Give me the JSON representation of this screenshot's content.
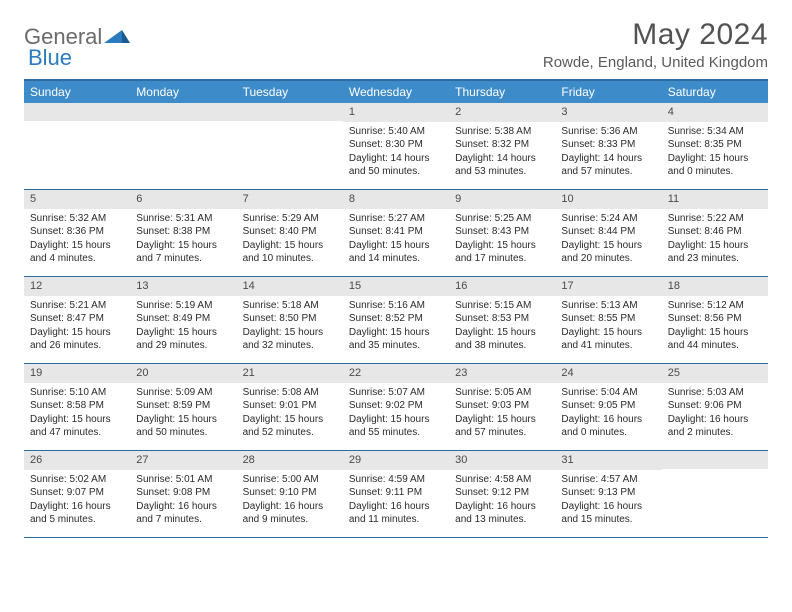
{
  "logo": {
    "text1": "General",
    "text2": "Blue"
  },
  "header": {
    "month_title": "May 2024",
    "location": "Rowde, England, United Kingdom"
  },
  "colors": {
    "header_bar": "#3d8bc9",
    "border": "#2b6ca3",
    "daynum_bg": "#e7e7e7",
    "logo_gray": "#6b6b6b",
    "logo_blue": "#2b7bbf"
  },
  "weekdays": [
    "Sunday",
    "Monday",
    "Tuesday",
    "Wednesday",
    "Thursday",
    "Friday",
    "Saturday"
  ],
  "weeks": [
    [
      {
        "day": "",
        "sunrise": "",
        "sunset": "",
        "daylight": ""
      },
      {
        "day": "",
        "sunrise": "",
        "sunset": "",
        "daylight": ""
      },
      {
        "day": "",
        "sunrise": "",
        "sunset": "",
        "daylight": ""
      },
      {
        "day": "1",
        "sunrise": "Sunrise: 5:40 AM",
        "sunset": "Sunset: 8:30 PM",
        "daylight": "Daylight: 14 hours and 50 minutes."
      },
      {
        "day": "2",
        "sunrise": "Sunrise: 5:38 AM",
        "sunset": "Sunset: 8:32 PM",
        "daylight": "Daylight: 14 hours and 53 minutes."
      },
      {
        "day": "3",
        "sunrise": "Sunrise: 5:36 AM",
        "sunset": "Sunset: 8:33 PM",
        "daylight": "Daylight: 14 hours and 57 minutes."
      },
      {
        "day": "4",
        "sunrise": "Sunrise: 5:34 AM",
        "sunset": "Sunset: 8:35 PM",
        "daylight": "Daylight: 15 hours and 0 minutes."
      }
    ],
    [
      {
        "day": "5",
        "sunrise": "Sunrise: 5:32 AM",
        "sunset": "Sunset: 8:36 PM",
        "daylight": "Daylight: 15 hours and 4 minutes."
      },
      {
        "day": "6",
        "sunrise": "Sunrise: 5:31 AM",
        "sunset": "Sunset: 8:38 PM",
        "daylight": "Daylight: 15 hours and 7 minutes."
      },
      {
        "day": "7",
        "sunrise": "Sunrise: 5:29 AM",
        "sunset": "Sunset: 8:40 PM",
        "daylight": "Daylight: 15 hours and 10 minutes."
      },
      {
        "day": "8",
        "sunrise": "Sunrise: 5:27 AM",
        "sunset": "Sunset: 8:41 PM",
        "daylight": "Daylight: 15 hours and 14 minutes."
      },
      {
        "day": "9",
        "sunrise": "Sunrise: 5:25 AM",
        "sunset": "Sunset: 8:43 PM",
        "daylight": "Daylight: 15 hours and 17 minutes."
      },
      {
        "day": "10",
        "sunrise": "Sunrise: 5:24 AM",
        "sunset": "Sunset: 8:44 PM",
        "daylight": "Daylight: 15 hours and 20 minutes."
      },
      {
        "day": "11",
        "sunrise": "Sunrise: 5:22 AM",
        "sunset": "Sunset: 8:46 PM",
        "daylight": "Daylight: 15 hours and 23 minutes."
      }
    ],
    [
      {
        "day": "12",
        "sunrise": "Sunrise: 5:21 AM",
        "sunset": "Sunset: 8:47 PM",
        "daylight": "Daylight: 15 hours and 26 minutes."
      },
      {
        "day": "13",
        "sunrise": "Sunrise: 5:19 AM",
        "sunset": "Sunset: 8:49 PM",
        "daylight": "Daylight: 15 hours and 29 minutes."
      },
      {
        "day": "14",
        "sunrise": "Sunrise: 5:18 AM",
        "sunset": "Sunset: 8:50 PM",
        "daylight": "Daylight: 15 hours and 32 minutes."
      },
      {
        "day": "15",
        "sunrise": "Sunrise: 5:16 AM",
        "sunset": "Sunset: 8:52 PM",
        "daylight": "Daylight: 15 hours and 35 minutes."
      },
      {
        "day": "16",
        "sunrise": "Sunrise: 5:15 AM",
        "sunset": "Sunset: 8:53 PM",
        "daylight": "Daylight: 15 hours and 38 minutes."
      },
      {
        "day": "17",
        "sunrise": "Sunrise: 5:13 AM",
        "sunset": "Sunset: 8:55 PM",
        "daylight": "Daylight: 15 hours and 41 minutes."
      },
      {
        "day": "18",
        "sunrise": "Sunrise: 5:12 AM",
        "sunset": "Sunset: 8:56 PM",
        "daylight": "Daylight: 15 hours and 44 minutes."
      }
    ],
    [
      {
        "day": "19",
        "sunrise": "Sunrise: 5:10 AM",
        "sunset": "Sunset: 8:58 PM",
        "daylight": "Daylight: 15 hours and 47 minutes."
      },
      {
        "day": "20",
        "sunrise": "Sunrise: 5:09 AM",
        "sunset": "Sunset: 8:59 PM",
        "daylight": "Daylight: 15 hours and 50 minutes."
      },
      {
        "day": "21",
        "sunrise": "Sunrise: 5:08 AM",
        "sunset": "Sunset: 9:01 PM",
        "daylight": "Daylight: 15 hours and 52 minutes."
      },
      {
        "day": "22",
        "sunrise": "Sunrise: 5:07 AM",
        "sunset": "Sunset: 9:02 PM",
        "daylight": "Daylight: 15 hours and 55 minutes."
      },
      {
        "day": "23",
        "sunrise": "Sunrise: 5:05 AM",
        "sunset": "Sunset: 9:03 PM",
        "daylight": "Daylight: 15 hours and 57 minutes."
      },
      {
        "day": "24",
        "sunrise": "Sunrise: 5:04 AM",
        "sunset": "Sunset: 9:05 PM",
        "daylight": "Daylight: 16 hours and 0 minutes."
      },
      {
        "day": "25",
        "sunrise": "Sunrise: 5:03 AM",
        "sunset": "Sunset: 9:06 PM",
        "daylight": "Daylight: 16 hours and 2 minutes."
      }
    ],
    [
      {
        "day": "26",
        "sunrise": "Sunrise: 5:02 AM",
        "sunset": "Sunset: 9:07 PM",
        "daylight": "Daylight: 16 hours and 5 minutes."
      },
      {
        "day": "27",
        "sunrise": "Sunrise: 5:01 AM",
        "sunset": "Sunset: 9:08 PM",
        "daylight": "Daylight: 16 hours and 7 minutes."
      },
      {
        "day": "28",
        "sunrise": "Sunrise: 5:00 AM",
        "sunset": "Sunset: 9:10 PM",
        "daylight": "Daylight: 16 hours and 9 minutes."
      },
      {
        "day": "29",
        "sunrise": "Sunrise: 4:59 AM",
        "sunset": "Sunset: 9:11 PM",
        "daylight": "Daylight: 16 hours and 11 minutes."
      },
      {
        "day": "30",
        "sunrise": "Sunrise: 4:58 AM",
        "sunset": "Sunset: 9:12 PM",
        "daylight": "Daylight: 16 hours and 13 minutes."
      },
      {
        "day": "31",
        "sunrise": "Sunrise: 4:57 AM",
        "sunset": "Sunset: 9:13 PM",
        "daylight": "Daylight: 16 hours and 15 minutes."
      },
      {
        "day": "",
        "sunrise": "",
        "sunset": "",
        "daylight": ""
      }
    ]
  ]
}
